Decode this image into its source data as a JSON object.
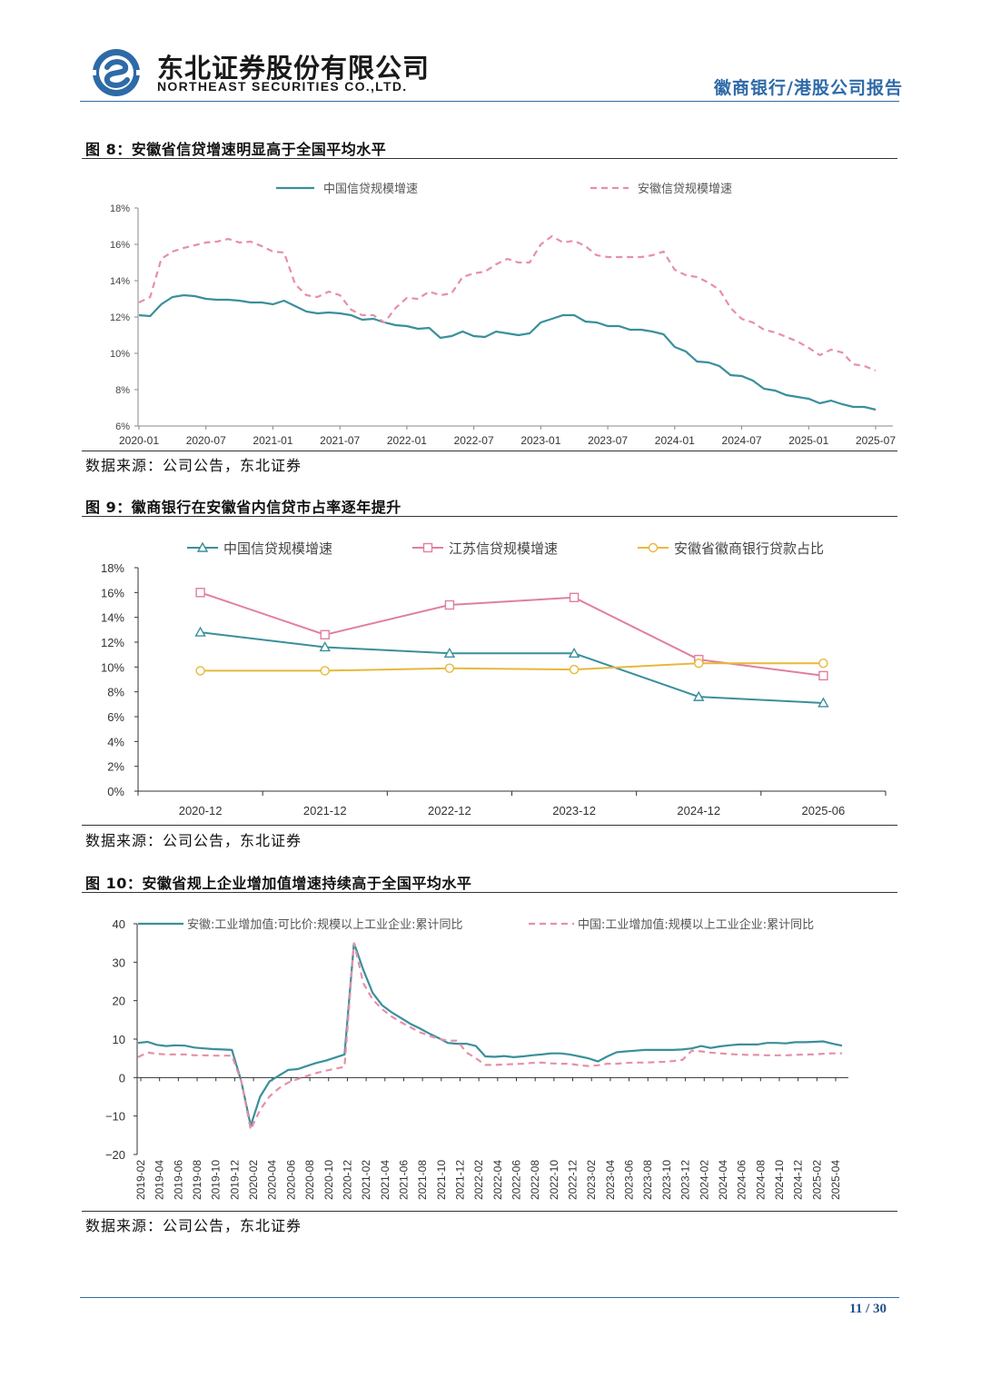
{
  "header": {
    "company_cn": "东北证券股份有限公司",
    "company_en": "NORTHEAST SECURITIES CO.,LTD.",
    "report_title": "徽商银行/港股公司报告",
    "brand_color": "#2e6aa8"
  },
  "figures": [
    {
      "title": "图 8：安徽省信贷增速明显高于全国平均水平",
      "source": "数据来源：公司公告，东北证券",
      "chart_data": {
        "type": "line",
        "title": "安徽省信贷增速明显高于全国平均水平",
        "x": [
          "2020-01",
          "2020-02",
          "2020-03",
          "2020-04",
          "2020-05",
          "2020-06",
          "2020-07",
          "2020-08",
          "2020-09",
          "2020-10",
          "2020-11",
          "2020-12",
          "2021-01",
          "2021-02",
          "2021-03",
          "2021-04",
          "2021-05",
          "2021-06",
          "2021-07",
          "2021-08",
          "2021-09",
          "2021-10",
          "2021-11",
          "2021-12",
          "2022-01",
          "2022-02",
          "2022-03",
          "2022-04",
          "2022-05",
          "2022-06",
          "2022-07",
          "2022-08",
          "2022-09",
          "2022-10",
          "2022-11",
          "2022-12",
          "2023-01",
          "2023-02",
          "2023-03",
          "2023-04",
          "2023-05",
          "2023-06",
          "2023-07",
          "2023-08",
          "2023-09",
          "2023-10",
          "2023-11",
          "2023-12",
          "2024-01",
          "2024-02",
          "2024-03",
          "2024-04",
          "2024-05",
          "2024-06",
          "2024-07",
          "2024-08",
          "2024-09",
          "2024-10",
          "2024-11",
          "2024-12",
          "2025-01",
          "2025-02",
          "2025-03",
          "2025-04",
          "2025-05",
          "2025-06",
          "2025-07"
        ],
        "x_ticks": [
          "2020-01",
          "2020-07",
          "2021-01",
          "2021-07",
          "2022-01",
          "2022-07",
          "2023-01",
          "2023-07",
          "2024-01",
          "2024-07",
          "2025-01",
          "2025-07"
        ],
        "y_ticks": [
          "6%",
          "8%",
          "10%",
          "12%",
          "14%",
          "16%",
          "18%"
        ],
        "ylim": [
          6,
          18
        ],
        "series": [
          {
            "name": "中国信贷规模增速",
            "color": "#3a8f9c",
            "dash": false,
            "values": [
              12.1,
              12.05,
              12.7,
              13.1,
              13.2,
              13.15,
              13.0,
              12.95,
              12.95,
              12.9,
              12.8,
              12.8,
              12.7,
              12.9,
              12.6,
              12.3,
              12.2,
              12.25,
              12.2,
              12.1,
              11.85,
              11.9,
              11.7,
              11.55,
              11.5,
              11.35,
              11.4,
              10.85,
              10.95,
              11.2,
              10.95,
              10.9,
              11.2,
              11.1,
              11.0,
              11.1,
              11.7,
              11.9,
              12.1,
              12.1,
              11.75,
              11.7,
              11.5,
              11.5,
              11.3,
              11.3,
              11.2,
              11.05,
              10.35,
              10.1,
              9.55,
              9.5,
              9.3,
              8.8,
              8.75,
              8.5,
              8.05,
              7.95,
              7.7,
              7.6,
              7.5,
              7.25,
              7.4,
              7.2,
              7.05,
              7.05,
              6.9
            ]
          },
          {
            "name": "安徽信贷规模增速",
            "color": "#e690a8",
            "dash": true,
            "values": [
              12.8,
              13.1,
              15.2,
              15.6,
              15.8,
              15.95,
              16.1,
              16.15,
              16.3,
              16.1,
              16.15,
              15.9,
              15.6,
              15.55,
              13.8,
              13.2,
              13.1,
              13.4,
              13.2,
              12.4,
              12.1,
              12.1,
              11.7,
              12.5,
              13.05,
              13.0,
              13.4,
              13.2,
              13.3,
              14.2,
              14.4,
              14.5,
              14.9,
              15.2,
              15.0,
              15.0,
              16.0,
              16.45,
              16.1,
              16.2,
              15.9,
              15.4,
              15.3,
              15.3,
              15.3,
              15.3,
              15.4,
              15.6,
              14.6,
              14.3,
              14.2,
              13.9,
              13.5,
              12.5,
              11.9,
              11.7,
              11.3,
              11.15,
              10.9,
              10.65,
              10.3,
              9.9,
              10.2,
              10.05,
              9.4,
              9.3,
              9.05
            ]
          }
        ]
      }
    },
    {
      "title": "图 9：徽商银行在安徽省内信贷市占率逐年提升",
      "source": "数据来源：公司公告，东北证券",
      "chart_data": {
        "type": "line",
        "title": "徽商银行在安徽省内信贷市占率逐年提升",
        "categories": [
          "2020-12",
          "2021-12",
          "2022-12",
          "2023-12",
          "2024-12",
          "2025-06"
        ],
        "y_ticks": [
          "0%",
          "2%",
          "4%",
          "6%",
          "8%",
          "10%",
          "12%",
          "14%",
          "16%",
          "18%"
        ],
        "ylim": [
          0,
          18
        ],
        "series": [
          {
            "name": "中国信贷规模增速",
            "color": "#3a8f9c",
            "marker": "triangle",
            "values": [
              12.8,
              11.6,
              11.1,
              11.1,
              7.6,
              7.1
            ]
          },
          {
            "name": "江苏信贷规模增速",
            "color": "#e07fa0",
            "marker": "square",
            "values": [
              16.0,
              12.6,
              15.0,
              15.6,
              10.6,
              9.3
            ]
          },
          {
            "name": "安徽省徽商银行贷款占比",
            "color": "#e6b93a",
            "marker": "circle",
            "values": [
              9.7,
              9.7,
              9.9,
              9.8,
              10.3,
              10.3
            ]
          }
        ]
      }
    },
    {
      "title": "图 10：安徽省规上企业增加值增速持续高于全国平均水平",
      "source": "数据来源：公司公告，东北证券",
      "chart_data": {
        "type": "line",
        "title": "安徽省规上企业增加值增速持续高于全国平均水平",
        "x_ticks": [
          "2019-02",
          "2019-04",
          "2019-06",
          "2019-08",
          "2019-10",
          "2019-12",
          "2020-02",
          "2020-04",
          "2020-06",
          "2020-08",
          "2020-10",
          "2020-12",
          "2021-02",
          "2021-04",
          "2021-06",
          "2021-08",
          "2021-10",
          "2021-12",
          "2022-02",
          "2022-04",
          "2022-06",
          "2022-08",
          "2022-10",
          "2022-12",
          "2023-02",
          "2023-04",
          "2023-06",
          "2023-08",
          "2023-10",
          "2023-12",
          "2024-02",
          "2024-04",
          "2024-06",
          "2024-08",
          "2024-10",
          "2024-12",
          "2025-02",
          "2025-04"
        ],
        "y_ticks": [
          "−20",
          "−10",
          "0",
          "10",
          "20",
          "30",
          "40"
        ],
        "ylim": [
          -20,
          40
        ],
        "series": [
          {
            "name": "安徽:工业增加值:可比价:规模以上工业企业:累计同比",
            "color": "#3a8f9c",
            "dash": false,
            "values": [
              9.0,
              9.3,
              8.5,
              8.2,
              8.4,
              8.3,
              7.8,
              7.6,
              7.4,
              7.3,
              7.2,
              -1.0,
              -12.5,
              -5.0,
              -1.0,
              0.5,
              2.0,
              2.2,
              3.0,
              3.8,
              4.4,
              5.2,
              6.0,
              35.0,
              28.0,
              22.0,
              18.8,
              17.0,
              15.5,
              14.0,
              12.8,
              11.5,
              10.3,
              9.0,
              8.8,
              8.8,
              8.2,
              5.5,
              5.4,
              5.6,
              5.3,
              5.5,
              5.8,
              6.0,
              6.3,
              6.3,
              6.0,
              5.5,
              5.0,
              4.2,
              5.5,
              6.6,
              6.8,
              7.0,
              7.2,
              7.2,
              7.2,
              7.2,
              7.3,
              7.6,
              8.2,
              7.7,
              8.1,
              8.4,
              8.6,
              8.6,
              8.6,
              9.0,
              9.0,
              8.9,
              9.2,
              9.2,
              9.3,
              9.4,
              8.8,
              8.3
            ]
          },
          {
            "name": "中国:工业增加值:规模以上工业企业:累计同比",
            "color": "#e690a8",
            "dash": true,
            "values": [
              5.3,
              6.5,
              6.2,
              6.0,
              6.0,
              6.0,
              5.8,
              5.8,
              5.7,
              5.7,
              5.7,
              -1.0,
              -13.5,
              -8.4,
              -4.9,
              -2.8,
              -1.3,
              -0.4,
              0.4,
              1.2,
              1.8,
              2.3,
              2.8,
              35.1,
              24.5,
              20.3,
              17.8,
              15.9,
              14.4,
              13.1,
              11.8,
              10.9,
              10.1,
              9.6,
              9.6,
              6.5,
              5.0,
              3.3,
              3.3,
              3.4,
              3.5,
              3.6,
              3.8,
              3.9,
              3.7,
              3.6,
              3.6,
              3.2,
              3.0,
              3.2,
              3.6,
              3.6,
              3.8,
              3.9,
              3.9,
              4.0,
              4.1,
              4.3,
              4.6,
              7.0,
              6.8,
              6.5,
              6.3,
              6.1,
              6.0,
              5.9,
              5.9,
              5.8,
              5.8,
              5.8,
              5.9,
              6.0,
              6.0,
              6.2,
              6.3,
              6.3
            ]
          }
        ]
      }
    }
  ],
  "footer": {
    "page_number": "11 / 30"
  }
}
